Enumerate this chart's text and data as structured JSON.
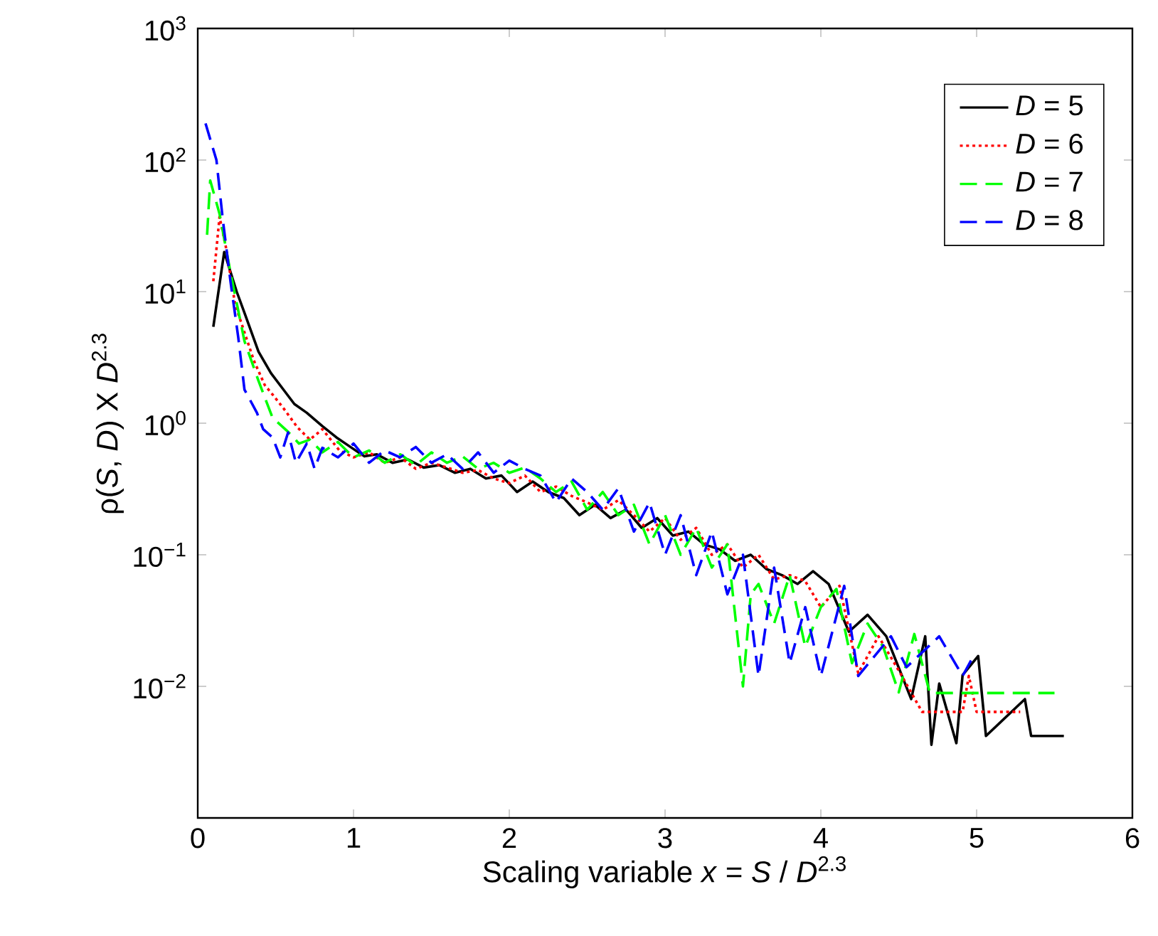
{
  "chart_data": {
    "type": "line",
    "xlabel": "Scaling variable  *x* = *S* / *D*$^{2.3}$",
    "ylabel": "ρ(*S*, *D*) X *D*$^{2.3}$",
    "log": "y",
    "grid": false,
    "legend": "top right",
    "xlim": [
      0,
      6
    ],
    "xticks": [
      0,
      1,
      2,
      3,
      4,
      5,
      6
    ],
    "ylim": [
      0.001,
      1000
    ],
    "yticks": [
      {
        "value": 0.001,
        "label": null
      },
      {
        "value": 0.01,
        "label": "10$^{−2}$"
      },
      {
        "value": 0.1,
        "label": "10$^{−1}$"
      },
      {
        "value": 1,
        "label": "10$^{0}$"
      },
      {
        "value": 10,
        "label": "10$^{1}$"
      },
      {
        "value": 100,
        "label": "10$^{2}$"
      },
      {
        "value": 1000,
        "label": "10$^{3}$"
      }
    ],
    "series": [
      {
        "name": "*D* = 5",
        "color": "#000000",
        "line_style": "solid",
        "x": [
          0.1,
          0.17,
          0.25,
          0.3,
          0.39,
          0.47,
          0.55,
          0.62,
          0.7,
          0.8,
          0.89,
          0.98,
          1.07,
          1.15,
          1.25,
          1.35,
          1.45,
          1.55,
          1.65,
          1.75,
          1.85,
          1.95,
          2.05,
          2.15,
          2.25,
          2.35,
          2.45,
          2.55,
          2.65,
          2.75,
          2.85,
          2.95,
          3.05,
          3.15,
          3.25,
          3.35,
          3.45,
          3.55,
          3.65,
          3.75,
          3.85,
          3.95,
          4.05,
          4.18,
          4.3,
          4.42,
          4.58,
          4.67,
          4.71,
          4.76,
          4.87,
          4.91,
          5.01,
          5.06,
          5.31,
          5.35,
          5.56
        ],
        "values": [
          5.4,
          20,
          10,
          6.9,
          3.5,
          2.4,
          1.8,
          1.4,
          1.2,
          0.95,
          0.78,
          0.66,
          0.56,
          0.58,
          0.5,
          0.53,
          0.46,
          0.48,
          0.42,
          0.45,
          0.38,
          0.4,
          0.3,
          0.36,
          0.3,
          0.27,
          0.2,
          0.24,
          0.19,
          0.22,
          0.16,
          0.19,
          0.14,
          0.15,
          0.12,
          0.11,
          0.09,
          0.1,
          0.078,
          0.07,
          0.06,
          0.075,
          0.06,
          0.026,
          0.035,
          0.024,
          0.008,
          0.024,
          0.0036,
          0.0105,
          0.0037,
          0.0122,
          0.017,
          0.0042,
          0.008,
          0.0042,
          0.0042
        ]
      },
      {
        "name": "*D* = 6",
        "color": "#ff0000",
        "line_style": "dotted",
        "x": [
          0.1,
          0.14,
          0.18,
          0.24,
          0.3,
          0.36,
          0.43,
          0.49,
          0.55,
          0.64,
          0.72,
          0.8,
          0.91,
          1.0,
          1.1,
          1.2,
          1.3,
          1.4,
          1.5,
          1.6,
          1.7,
          1.8,
          1.9,
          2.0,
          2.1,
          2.2,
          2.3,
          2.4,
          2.5,
          2.6,
          2.7,
          2.8,
          2.9,
          3.0,
          3.1,
          3.2,
          3.3,
          3.4,
          3.5,
          3.6,
          3.7,
          3.8,
          3.9,
          4.0,
          4.12,
          4.24,
          4.37,
          4.51,
          4.65,
          4.91,
          4.95,
          5.0,
          5.28
        ],
        "values": [
          12,
          37,
          22,
          8,
          4.9,
          3,
          1.95,
          1.6,
          1.3,
          0.93,
          0.75,
          0.9,
          0.62,
          0.55,
          0.6,
          0.5,
          0.55,
          0.45,
          0.5,
          0.46,
          0.42,
          0.44,
          0.38,
          0.35,
          0.4,
          0.3,
          0.33,
          0.28,
          0.25,
          0.22,
          0.26,
          0.2,
          0.15,
          0.19,
          0.13,
          0.16,
          0.1,
          0.12,
          0.08,
          0.1,
          0.065,
          0.07,
          0.063,
          0.04,
          0.058,
          0.0126,
          0.024,
          0.0126,
          0.0064,
          0.0064,
          0.012,
          0.0064,
          0.0064
        ]
      },
      {
        "name": "*D* = 7",
        "color": "#00ff00",
        "line_style": "dashed",
        "x": [
          0.06,
          0.08,
          0.14,
          0.21,
          0.3,
          0.39,
          0.48,
          0.58,
          0.65,
          0.72,
          0.8,
          0.9,
          1.0,
          1.1,
          1.2,
          1.3,
          1.4,
          1.5,
          1.6,
          1.7,
          1.8,
          1.9,
          2.0,
          2.1,
          2.2,
          2.3,
          2.4,
          2.5,
          2.6,
          2.7,
          2.8,
          2.9,
          3.0,
          3.1,
          3.2,
          3.3,
          3.4,
          3.5,
          3.55,
          3.6,
          3.7,
          3.8,
          3.9,
          4.0,
          4.1,
          4.2,
          4.3,
          4.4,
          4.5,
          4.6,
          4.7,
          5.5
        ],
        "values": [
          27,
          70,
          39,
          14,
          4.2,
          2.1,
          1.1,
          0.86,
          0.7,
          0.75,
          0.6,
          0.72,
          0.55,
          0.62,
          0.5,
          0.58,
          0.48,
          0.6,
          0.5,
          0.56,
          0.45,
          0.5,
          0.42,
          0.46,
          0.38,
          0.3,
          0.36,
          0.22,
          0.3,
          0.2,
          0.24,
          0.12,
          0.2,
          0.1,
          0.16,
          0.08,
          0.12,
          0.01,
          0.05,
          0.06,
          0.03,
          0.07,
          0.02,
          0.04,
          0.055,
          0.015,
          0.03,
          0.02,
          0.009,
          0.025,
          0.0089,
          0.0089
        ]
      },
      {
        "name": "*D* = 8",
        "color": "#0000ff",
        "line_style": "dashed",
        "x": [
          0.05,
          0.12,
          0.16,
          0.21,
          0.26,
          0.3,
          0.38,
          0.42,
          0.48,
          0.53,
          0.58,
          0.63,
          0.7,
          0.75,
          0.8,
          0.9,
          1.0,
          1.1,
          1.2,
          1.3,
          1.4,
          1.5,
          1.6,
          1.7,
          1.8,
          1.9,
          2.0,
          2.1,
          2.2,
          2.3,
          2.4,
          2.5,
          2.6,
          2.7,
          2.8,
          2.9,
          3.0,
          3.1,
          3.2,
          3.3,
          3.4,
          3.5,
          3.6,
          3.7,
          3.8,
          3.9,
          4.0,
          4.15,
          4.24,
          4.45,
          4.55,
          4.76,
          4.91,
          4.98
        ],
        "values": [
          190,
          100,
          36,
          12,
          4.5,
          1.8,
          1.2,
          0.9,
          0.78,
          0.55,
          0.85,
          0.5,
          0.7,
          0.45,
          0.65,
          0.55,
          0.7,
          0.5,
          0.62,
          0.55,
          0.66,
          0.5,
          0.58,
          0.45,
          0.6,
          0.42,
          0.52,
          0.45,
          0.4,
          0.25,
          0.38,
          0.3,
          0.22,
          0.32,
          0.15,
          0.25,
          0.1,
          0.2,
          0.07,
          0.15,
          0.05,
          0.1,
          0.012,
          0.08,
          0.015,
          0.04,
          0.012,
          0.058,
          0.012,
          0.024,
          0.014,
          0.024,
          0.012,
          0.017
        ]
      }
    ]
  }
}
